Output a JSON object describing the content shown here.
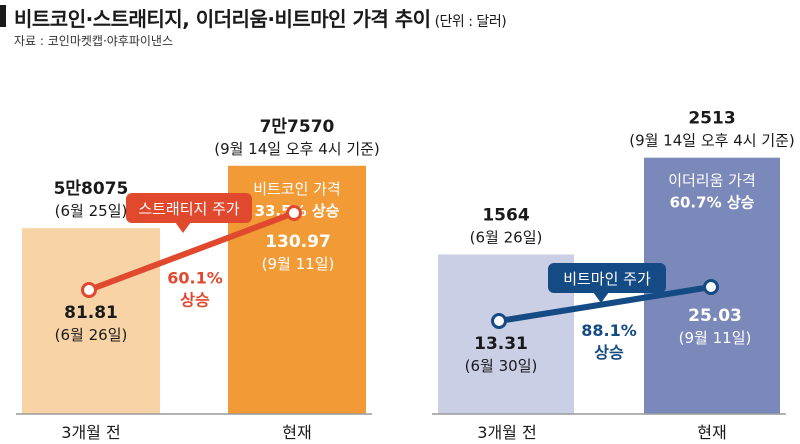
{
  "title": "비트코인·스트래티지, 이더리움·비트마인 가격 추이",
  "unit": "(단위 : 달러)",
  "source": "자료 : 코인마켓캡·야후파이낸스",
  "colors": {
    "btc_then": "#f8d3a6",
    "btc_now": "#f19a36",
    "eth_then": "#cacfe6",
    "eth_now": "#7b89ba",
    "mstr_line": "#e0492e",
    "bmnr_line": "#154b84",
    "axis": "#9a9a9a"
  },
  "chart_data": [
    {
      "type": "bar",
      "name": "",
      "categories": [
        "3개월 전",
        "현재"
      ],
      "bar_values": [
        58075,
        77570
      ],
      "bar_value_labels": [
        "5만8075",
        "7만7570"
      ],
      "bar_date_labels": [
        "(6월 25일)",
        "(9월 14일 오후 4시 기준)"
      ],
      "bar_inner_label": [
        "비트코인 가격",
        "33.5% 상승"
      ],
      "line": {
        "name": "스트래티지 주가",
        "values": [
          81.81,
          130.97
        ],
        "value_labels": [
          "81.81",
          "130.97"
        ],
        "date_labels": [
          "(6월 26일)",
          "(9월 11일)"
        ],
        "change": [
          "60.1%",
          "상승"
        ]
      }
    },
    {
      "type": "bar",
      "name": "",
      "categories": [
        "3개월 전",
        "현재"
      ],
      "bar_values": [
        1564,
        2513
      ],
      "bar_value_labels": [
        "1564",
        "2513"
      ],
      "bar_date_labels": [
        "(6월 26일)",
        "(9월 14일 오후 4시 기준)"
      ],
      "bar_inner_label": [
        "이더리움 가격",
        "60.7% 상승"
      ],
      "line": {
        "name": "비트마인 주가",
        "values": [
          13.31,
          25.03
        ],
        "value_labels": [
          "13.31",
          "25.03"
        ],
        "date_labels": [
          "(6월 30일)",
          "(9월 11일)"
        ],
        "change": [
          "88.1%",
          "상승"
        ]
      }
    }
  ]
}
